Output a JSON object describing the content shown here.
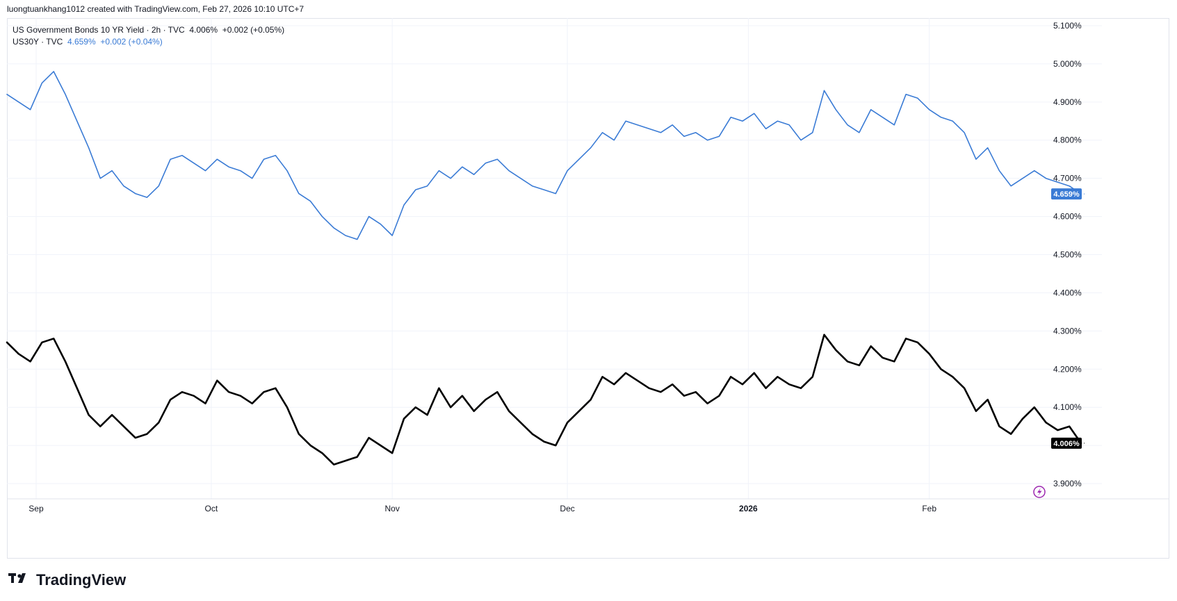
{
  "attribution": "luongtuankhang1012 created with TradingView.com, Feb 27, 2026 10:10 UTC+7",
  "legend": {
    "row1": {
      "name": "US Government Bonds 10 YR Yield · 2h · TVC",
      "value": "4.006%",
      "change": "+0.002 (+0.05%)"
    },
    "row2": {
      "name": "US30Y · TVC",
      "value": "4.659%",
      "change": "+0.002 (+0.04%)"
    }
  },
  "logo_text": "TradingView",
  "colors": {
    "us10y": "#000000",
    "us30y": "#3a7bd5",
    "grid": "#f0f3fa",
    "flash": "#9c27b0"
  },
  "icons": {
    "logo": "tradingview-logo-icon",
    "flash": "lightning-icon"
  },
  "chart_data": {
    "type": "line",
    "x_domain": [
      "2025-08-27",
      "2026-02-27"
    ],
    "ylim": [
      3.86,
      5.12
    ],
    "y_ticks": [
      "5.100%",
      "5.000%",
      "4.900%",
      "4.800%",
      "4.700%",
      "4.600%",
      "4.500%",
      "4.400%",
      "4.300%",
      "4.200%",
      "4.100%",
      "4.000%",
      "3.900%"
    ],
    "x_ticks": [
      {
        "label": "Sep",
        "date": "2025-09-01",
        "bold": false
      },
      {
        "label": "Oct",
        "date": "2025-10-01",
        "bold": false
      },
      {
        "label": "Nov",
        "date": "2025-11-01",
        "bold": false
      },
      {
        "label": "Dec",
        "date": "2025-12-01",
        "bold": false
      },
      {
        "label": "2026",
        "date": "2026-01-01",
        "bold": true
      },
      {
        "label": "Feb",
        "date": "2026-02-01",
        "bold": false
      }
    ],
    "series": [
      {
        "name": "US30Y · TVC",
        "color": "#3a7bd5",
        "last_label": "4.659%",
        "x": [
          "2025-08-27",
          "2025-08-29",
          "2025-08-31",
          "2025-09-02",
          "2025-09-04",
          "2025-09-06",
          "2025-09-08",
          "2025-09-10",
          "2025-09-12",
          "2025-09-14",
          "2025-09-16",
          "2025-09-18",
          "2025-09-20",
          "2025-09-22",
          "2025-09-24",
          "2025-09-26",
          "2025-09-28",
          "2025-09-30",
          "2025-10-02",
          "2025-10-04",
          "2025-10-06",
          "2025-10-08",
          "2025-10-10",
          "2025-10-12",
          "2025-10-14",
          "2025-10-16",
          "2025-10-18",
          "2025-10-20",
          "2025-10-22",
          "2025-10-24",
          "2025-10-26",
          "2025-10-28",
          "2025-10-30",
          "2025-11-01",
          "2025-11-03",
          "2025-11-05",
          "2025-11-07",
          "2025-11-09",
          "2025-11-11",
          "2025-11-13",
          "2025-11-15",
          "2025-11-17",
          "2025-11-19",
          "2025-11-21",
          "2025-11-23",
          "2025-11-25",
          "2025-11-27",
          "2025-11-29",
          "2025-12-01",
          "2025-12-03",
          "2025-12-05",
          "2025-12-07",
          "2025-12-09",
          "2025-12-11",
          "2025-12-13",
          "2025-12-15",
          "2025-12-17",
          "2025-12-19",
          "2025-12-21",
          "2025-12-23",
          "2025-12-25",
          "2025-12-27",
          "2025-12-29",
          "2025-12-31",
          "2026-01-02",
          "2026-01-04",
          "2026-01-06",
          "2026-01-08",
          "2026-01-10",
          "2026-01-12",
          "2026-01-14",
          "2026-01-16",
          "2026-01-18",
          "2026-01-20",
          "2026-01-22",
          "2026-01-24",
          "2026-01-26",
          "2026-01-28",
          "2026-01-30",
          "2026-02-01",
          "2026-02-03",
          "2026-02-05",
          "2026-02-07",
          "2026-02-09",
          "2026-02-11",
          "2026-02-13",
          "2026-02-15",
          "2026-02-17",
          "2026-02-19",
          "2026-02-21",
          "2026-02-23",
          "2026-02-25",
          "2026-02-27"
        ],
        "values": [
          4.92,
          4.9,
          4.88,
          4.95,
          4.98,
          4.92,
          4.85,
          4.78,
          4.7,
          4.72,
          4.68,
          4.66,
          4.65,
          4.68,
          4.75,
          4.76,
          4.74,
          4.72,
          4.75,
          4.73,
          4.72,
          4.7,
          4.75,
          4.76,
          4.72,
          4.66,
          4.64,
          4.6,
          4.57,
          4.55,
          4.54,
          4.6,
          4.58,
          4.55,
          4.63,
          4.67,
          4.68,
          4.72,
          4.7,
          4.73,
          4.71,
          4.74,
          4.75,
          4.72,
          4.7,
          4.68,
          4.67,
          4.66,
          4.72,
          4.75,
          4.78,
          4.82,
          4.8,
          4.85,
          4.84,
          4.83,
          4.82,
          4.84,
          4.81,
          4.82,
          4.8,
          4.81,
          4.86,
          4.85,
          4.87,
          4.83,
          4.85,
          4.84,
          4.8,
          4.82,
          4.93,
          4.88,
          4.84,
          4.82,
          4.88,
          4.86,
          4.84,
          4.92,
          4.91,
          4.88,
          4.86,
          4.85,
          4.82,
          4.75,
          4.78,
          4.72,
          4.68,
          4.7,
          4.72,
          4.7,
          4.69,
          4.68,
          4.659
        ]
      },
      {
        "name": "US Government Bonds 10 YR Yield · 2h · TVC",
        "color": "#000000",
        "last_label": "4.006%",
        "x": [
          "2025-08-27",
          "2025-08-29",
          "2025-08-31",
          "2025-09-02",
          "2025-09-04",
          "2025-09-06",
          "2025-09-08",
          "2025-09-10",
          "2025-09-12",
          "2025-09-14",
          "2025-09-16",
          "2025-09-18",
          "2025-09-20",
          "2025-09-22",
          "2025-09-24",
          "2025-09-26",
          "2025-09-28",
          "2025-09-30",
          "2025-10-02",
          "2025-10-04",
          "2025-10-06",
          "2025-10-08",
          "2025-10-10",
          "2025-10-12",
          "2025-10-14",
          "2025-10-16",
          "2025-10-18",
          "2025-10-20",
          "2025-10-22",
          "2025-10-24",
          "2025-10-26",
          "2025-10-28",
          "2025-10-30",
          "2025-11-01",
          "2025-11-03",
          "2025-11-05",
          "2025-11-07",
          "2025-11-09",
          "2025-11-11",
          "2025-11-13",
          "2025-11-15",
          "2025-11-17",
          "2025-11-19",
          "2025-11-21",
          "2025-11-23",
          "2025-11-25",
          "2025-11-27",
          "2025-11-29",
          "2025-12-01",
          "2025-12-03",
          "2025-12-05",
          "2025-12-07",
          "2025-12-09",
          "2025-12-11",
          "2025-12-13",
          "2025-12-15",
          "2025-12-17",
          "2025-12-19",
          "2025-12-21",
          "2025-12-23",
          "2025-12-25",
          "2025-12-27",
          "2025-12-29",
          "2025-12-31",
          "2026-01-02",
          "2026-01-04",
          "2026-01-06",
          "2026-01-08",
          "2026-01-10",
          "2026-01-12",
          "2026-01-14",
          "2026-01-16",
          "2026-01-18",
          "2026-01-20",
          "2026-01-22",
          "2026-01-24",
          "2026-01-26",
          "2026-01-28",
          "2026-01-30",
          "2026-02-01",
          "2026-02-03",
          "2026-02-05",
          "2026-02-07",
          "2026-02-09",
          "2026-02-11",
          "2026-02-13",
          "2026-02-15",
          "2026-02-17",
          "2026-02-19",
          "2026-02-21",
          "2026-02-23",
          "2026-02-25",
          "2026-02-27"
        ],
        "values": [
          4.27,
          4.24,
          4.22,
          4.27,
          4.28,
          4.22,
          4.15,
          4.08,
          4.05,
          4.08,
          4.05,
          4.02,
          4.03,
          4.06,
          4.12,
          4.14,
          4.13,
          4.11,
          4.17,
          4.14,
          4.13,
          4.11,
          4.14,
          4.15,
          4.1,
          4.03,
          4.0,
          3.98,
          3.95,
          3.96,
          3.97,
          4.02,
          4.0,
          3.98,
          4.07,
          4.1,
          4.08,
          4.15,
          4.1,
          4.13,
          4.09,
          4.12,
          4.14,
          4.09,
          4.06,
          4.03,
          4.01,
          4.0,
          4.06,
          4.09,
          4.12,
          4.18,
          4.16,
          4.19,
          4.17,
          4.15,
          4.14,
          4.16,
          4.13,
          4.14,
          4.11,
          4.13,
          4.18,
          4.16,
          4.19,
          4.15,
          4.18,
          4.16,
          4.15,
          4.18,
          4.29,
          4.25,
          4.22,
          4.21,
          4.26,
          4.23,
          4.22,
          4.28,
          4.27,
          4.24,
          4.2,
          4.18,
          4.15,
          4.09,
          4.12,
          4.05,
          4.03,
          4.07,
          4.1,
          4.06,
          4.04,
          4.05,
          4.006
        ]
      }
    ]
  }
}
